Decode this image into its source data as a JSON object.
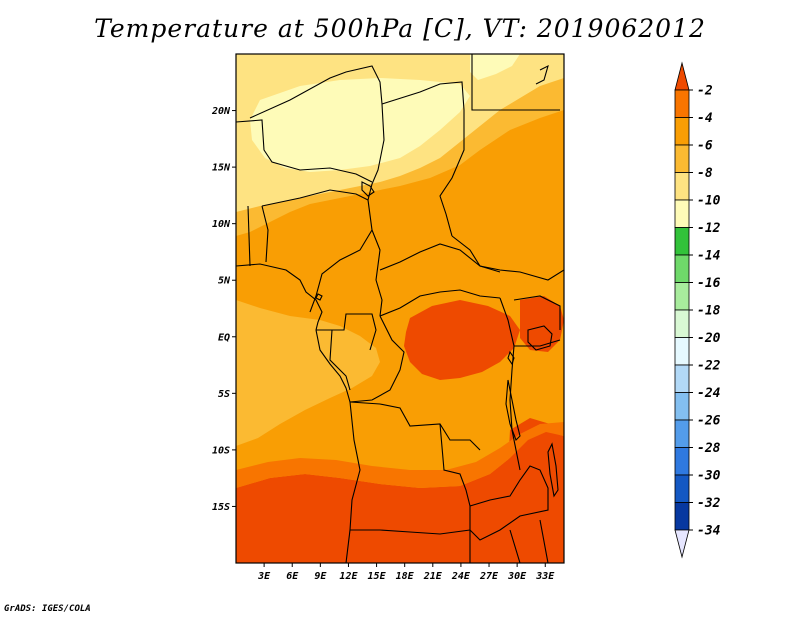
{
  "title": "Temperature at 500hPa [C], VT: 2019062012",
  "credit": "GrADS: IGES/COLA",
  "map": {
    "lon_range": [
      0,
      35
    ],
    "lat_range": [
      -20,
      25
    ],
    "lat_ticks": [
      {
        "value": 20,
        "label": "20N"
      },
      {
        "value": 15,
        "label": "15N"
      },
      {
        "value": 10,
        "label": "10N"
      },
      {
        "value": 5,
        "label": "5N"
      },
      {
        "value": 0,
        "label": "EQ"
      },
      {
        "value": -5,
        "label": "5S"
      },
      {
        "value": -10,
        "label": "10S"
      },
      {
        "value": -15,
        "label": "15S"
      }
    ],
    "lon_ticks": [
      {
        "value": 3,
        "label": "3E"
      },
      {
        "value": 6,
        "label": "6E"
      },
      {
        "value": 9,
        "label": "9E"
      },
      {
        "value": 12,
        "label": "12E"
      },
      {
        "value": 15,
        "label": "15E"
      },
      {
        "value": 18,
        "label": "18E"
      },
      {
        "value": 21,
        "label": "21E"
      },
      {
        "value": 24,
        "label": "24E"
      },
      {
        "value": 27,
        "label": "27E"
      },
      {
        "value": 30,
        "label": "30E"
      },
      {
        "value": 33,
        "label": "33E"
      }
    ]
  },
  "colorbar": {
    "labels": [
      "-2",
      "-4",
      "-6",
      "-8",
      "-10",
      "-12",
      "-14",
      "-16",
      "-18",
      "-20",
      "-22",
      "-24",
      "-26",
      "-28",
      "-30",
      "-32",
      "-34"
    ],
    "colors": [
      "#ee4a00",
      "#f87500",
      "#f99e04",
      "#fbba32",
      "#fee382",
      "#fefbb8",
      "#32c23a",
      "#6fd96a",
      "#a8ec9d",
      "#d9f8d4",
      "#e6f9ff",
      "#b2d9f7",
      "#83bff0",
      "#539cea",
      "#2f79e0",
      "#1458c3",
      "#0738a0",
      "#06106d"
    ],
    "top_arrow_color": "#ee4a00",
    "bottom_arrow_color": "#e6e6ff"
  }
}
